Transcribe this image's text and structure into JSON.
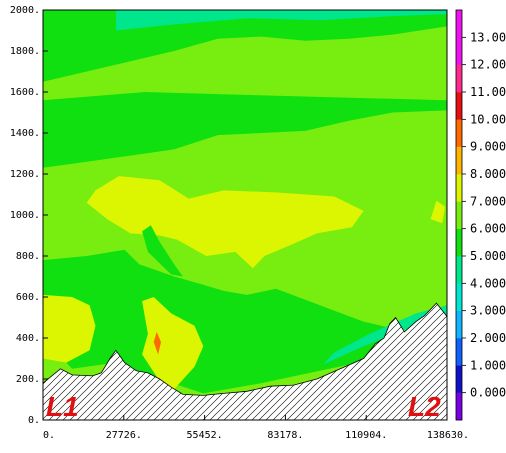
{
  "chart_data": {
    "type": "heatmap",
    "title": "",
    "xlabel": "",
    "ylabel": "",
    "xlim": [
      0,
      138630
    ],
    "ylim": [
      0,
      2000
    ],
    "x_ticks": [
      "0.",
      "27726.",
      "55452.",
      "83178.",
      "110904.",
      "138630."
    ],
    "y_ticks": [
      "0.",
      "200.",
      "400.",
      "600.",
      "800.",
      "1000.",
      "1200.",
      "1400.",
      "1600.",
      "1800.",
      "2000."
    ],
    "colorbar": {
      "labels": [
        "0.000",
        "1.000",
        "2.000",
        "3.000",
        "4.000",
        "5.000",
        "6.000",
        "7.000",
        "8.000",
        "9.000",
        "10.00",
        "11.00",
        "12.00",
        "13.00"
      ],
      "colors": [
        "#7a00e6",
        "#1010c8",
        "#1060ff",
        "#10b4ff",
        "#00e6d2",
        "#00e68c",
        "#10e010",
        "#78ee10",
        "#dcf500",
        "#ffb400",
        "#ff6a00",
        "#e61010",
        "#ff2a8c",
        "#f010f0"
      ]
    },
    "endpoint_labels": [
      "L1",
      "L2"
    ],
    "terrain_profile": [
      [
        0,
        180
      ],
      [
        6000,
        250
      ],
      [
        10000,
        220
      ],
      [
        17000,
        215
      ],
      [
        20000,
        230
      ],
      [
        23000,
        300
      ],
      [
        25000,
        340
      ],
      [
        28000,
        280
      ],
      [
        32000,
        240
      ],
      [
        36000,
        230
      ],
      [
        40000,
        200
      ],
      [
        44000,
        160
      ],
      [
        48000,
        125
      ],
      [
        55000,
        120
      ],
      [
        62000,
        130
      ],
      [
        70000,
        140
      ],
      [
        78000,
        165
      ],
      [
        86000,
        170
      ],
      [
        94000,
        200
      ],
      [
        102000,
        250
      ],
      [
        110000,
        300
      ],
      [
        114000,
        370
      ],
      [
        117000,
        400
      ],
      [
        119000,
        470
      ],
      [
        121000,
        500
      ],
      [
        124000,
        430
      ],
      [
        128000,
        480
      ],
      [
        131000,
        510
      ],
      [
        135000,
        570
      ],
      [
        138630,
        505
      ]
    ],
    "field_regions": [
      {
        "level": 6,
        "points": [
          [
            0,
            1650
          ],
          [
            15000,
            1700
          ],
          [
            30000,
            1750
          ],
          [
            45000,
            1800
          ],
          [
            60000,
            1860
          ],
          [
            75000,
            1870
          ],
          [
            90000,
            1850
          ],
          [
            105000,
            1860
          ],
          [
            120000,
            1880
          ],
          [
            138630,
            1920
          ],
          [
            138630,
            2000
          ],
          [
            0,
            2000
          ]
        ]
      },
      {
        "level": 5,
        "points": [
          [
            25000,
            1900
          ],
          [
            45000,
            1930
          ],
          [
            70000,
            1960
          ],
          [
            95000,
            1950
          ],
          [
            120000,
            1970
          ],
          [
            138630,
            1980
          ],
          [
            138630,
            2000
          ],
          [
            25000,
            2000
          ]
        ]
      },
      {
        "level": 6,
        "points": [
          [
            0,
            1230
          ],
          [
            15000,
            1260
          ],
          [
            30000,
            1290
          ],
          [
            45000,
            1320
          ],
          [
            60000,
            1390
          ],
          [
            75000,
            1400
          ],
          [
            90000,
            1410
          ],
          [
            105000,
            1460
          ],
          [
            120000,
            1500
          ],
          [
            138630,
            1510
          ],
          [
            138630,
            1560
          ],
          [
            110000,
            1570
          ],
          [
            85000,
            1580
          ],
          [
            60000,
            1590
          ],
          [
            35000,
            1600
          ],
          [
            0,
            1560
          ]
        ]
      },
      {
        "level": 6,
        "points": [
          [
            0,
            780
          ],
          [
            15000,
            800
          ],
          [
            28000,
            830
          ],
          [
            33000,
            760
          ],
          [
            45000,
            700
          ],
          [
            55000,
            660
          ],
          [
            62000,
            630
          ],
          [
            70000,
            610
          ],
          [
            80000,
            640
          ],
          [
            95000,
            560
          ],
          [
            110000,
            480
          ],
          [
            125000,
            430
          ],
          [
            138630,
            470
          ],
          [
            138630,
            320
          ],
          [
            115000,
            300
          ],
          [
            95000,
            240
          ],
          [
            75000,
            180
          ],
          [
            55000,
            130
          ],
          [
            40000,
            200
          ],
          [
            25000,
            280
          ],
          [
            10000,
            250
          ],
          [
            0,
            400
          ]
        ]
      },
      {
        "level": 8,
        "points": [
          [
            18000,
            1120
          ],
          [
            26000,
            1190
          ],
          [
            40000,
            1170
          ],
          [
            50000,
            1080
          ],
          [
            62000,
            1120
          ],
          [
            80000,
            1110
          ],
          [
            100000,
            1090
          ],
          [
            110000,
            1020
          ],
          [
            106000,
            940
          ],
          [
            94000,
            910
          ],
          [
            86000,
            860
          ],
          [
            76000,
            800
          ],
          [
            72000,
            740
          ],
          [
            66000,
            820
          ],
          [
            56000,
            800
          ],
          [
            46000,
            880
          ],
          [
            40000,
            900
          ],
          [
            30000,
            910
          ],
          [
            22000,
            980
          ],
          [
            15000,
            1060
          ]
        ]
      },
      {
        "level": 8,
        "points": [
          [
            0,
            610
          ],
          [
            10000,
            600
          ],
          [
            16000,
            560
          ],
          [
            18000,
            460
          ],
          [
            16000,
            340
          ],
          [
            8000,
            280
          ],
          [
            0,
            300
          ]
        ]
      },
      {
        "level": 8,
        "points": [
          [
            34000,
            580
          ],
          [
            38000,
            600
          ],
          [
            44000,
            520
          ],
          [
            52000,
            460
          ],
          [
            55000,
            360
          ],
          [
            52000,
            260
          ],
          [
            45000,
            150
          ],
          [
            40000,
            190
          ],
          [
            34000,
            320
          ],
          [
            36000,
            420
          ]
        ]
      },
      {
        "level": 8,
        "points": [
          [
            135000,
            1070
          ],
          [
            138000,
            1040
          ],
          [
            137000,
            960
          ],
          [
            133000,
            980
          ]
        ]
      },
      {
        "level": 6,
        "points": [
          [
            34000,
            920
          ],
          [
            37000,
            950
          ],
          [
            40000,
            870
          ],
          [
            45000,
            760
          ],
          [
            48000,
            700
          ],
          [
            44000,
            710
          ],
          [
            36000,
            820
          ]
        ]
      },
      {
        "level": 6,
        "points": [
          [
            18000,
            760
          ],
          [
            24000,
            750
          ],
          [
            23000,
            690
          ],
          [
            18000,
            680
          ]
        ]
      },
      {
        "level": 10,
        "points": [
          [
            39000,
            430
          ],
          [
            40500,
            380
          ],
          [
            39500,
            320
          ],
          [
            38000,
            380
          ]
        ]
      },
      {
        "level": 4,
        "points": [
          [
            78000,
            160
          ],
          [
            95000,
            185
          ],
          [
            110000,
            240
          ],
          [
            128000,
            330
          ],
          [
            138630,
            420
          ],
          [
            138630,
            505
          ],
          [
            131000,
            510
          ],
          [
            128000,
            480
          ],
          [
            124000,
            430
          ],
          [
            121000,
            500
          ],
          [
            119000,
            470
          ],
          [
            117000,
            400
          ],
          [
            114000,
            370
          ],
          [
            110000,
            300
          ],
          [
            102000,
            250
          ],
          [
            94000,
            200
          ],
          [
            86000,
            170
          ],
          [
            78000,
            165
          ]
        ]
      },
      {
        "level": 3,
        "points": [
          [
            128000,
            470
          ],
          [
            134000,
            540
          ],
          [
            138630,
            500
          ],
          [
            138630,
            510
          ],
          [
            135000,
            570
          ],
          [
            131000,
            510
          ]
        ]
      },
      {
        "level": 5,
        "points": [
          [
            96000,
            270
          ],
          [
            110000,
            360
          ],
          [
            124000,
            440
          ],
          [
            138630,
            480
          ],
          [
            138630,
            560
          ],
          [
            128000,
            520
          ],
          [
            112000,
            420
          ],
          [
            100000,
            330
          ]
        ]
      }
    ]
  }
}
